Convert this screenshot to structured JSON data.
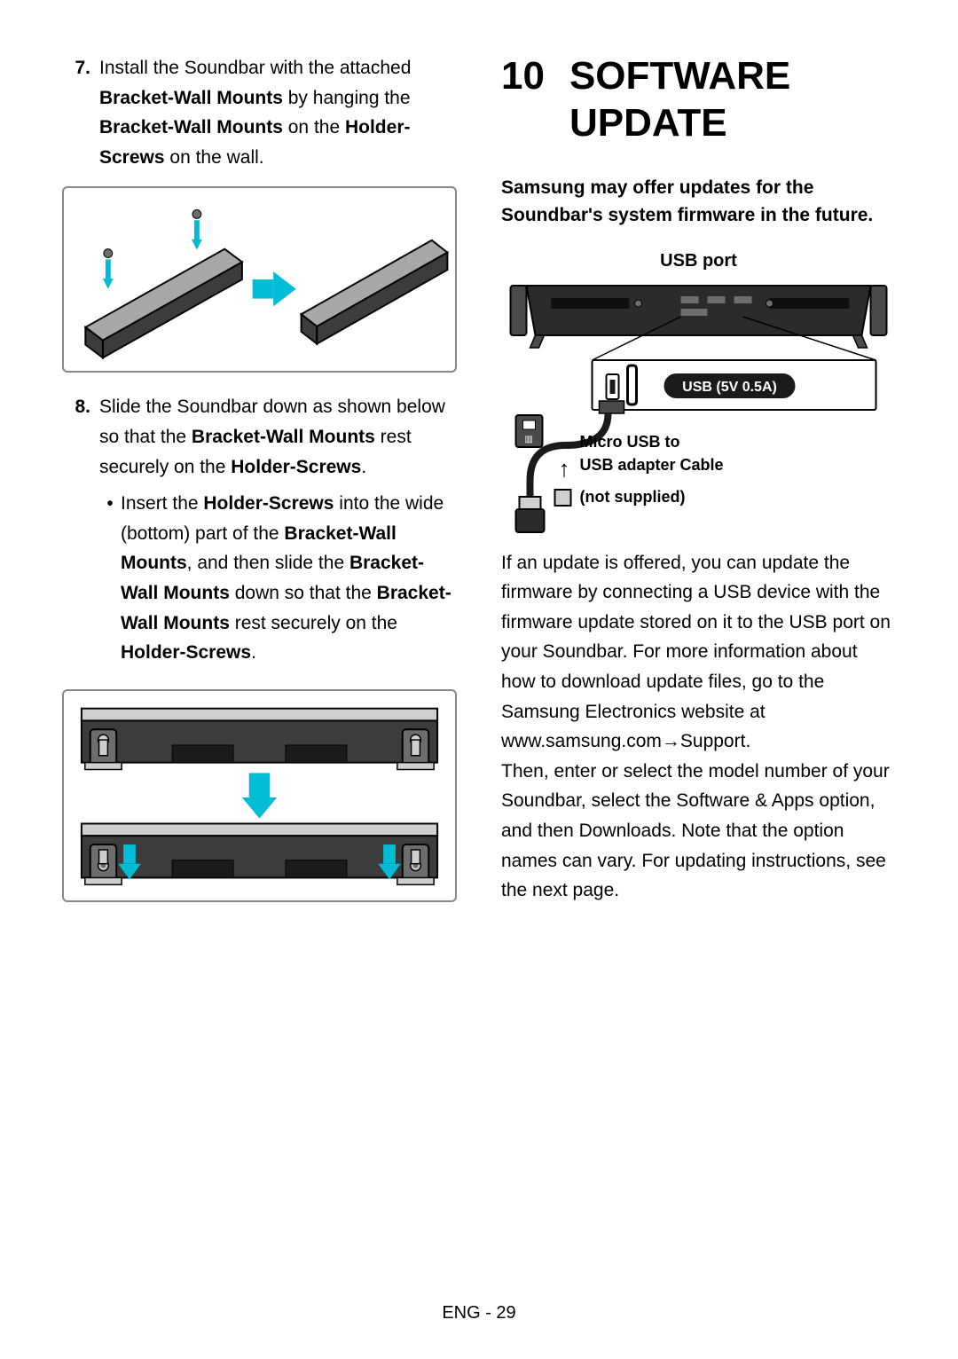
{
  "left": {
    "step7": {
      "num": "7.",
      "text_parts": [
        "Install the Soundbar with the attached ",
        "Bracket-Wall Mounts",
        " by hanging the ",
        "Bracket-Wall Mounts",
        " on the ",
        "Holder-Screws",
        " on the wall."
      ]
    },
    "step8": {
      "num": "8.",
      "text_parts": [
        "Slide the Soundbar down as shown below so that the ",
        "Bracket-Wall Mounts",
        " rest securely on the ",
        "Holder-Screws",
        "."
      ],
      "bullet_parts": [
        "Insert the ",
        "Holder-Screws",
        " into the wide (bottom) part of the ",
        "Bracket-Wall Mounts",
        ", and then slide the ",
        "Bracket-Wall Mounts",
        " down so that the ",
        "Bracket-Wall Mounts",
        " rest securely on the ",
        "Holder-Screws",
        "."
      ]
    },
    "fig1": {
      "border_color": "#8c8c8c",
      "bar_fill": "#3c3c3c",
      "bar_top": "#a8a8a8",
      "arrow_color": "#00bcd4",
      "screw_color": "#6d6d6d"
    },
    "fig2": {
      "border_color": "#8c8c8c",
      "bar_fill": "#3c3c3c",
      "bar_light": "#cfcfcf",
      "mount_fill": "#6d6d6d",
      "arrow_color": "#00bcd4"
    }
  },
  "right": {
    "section_num": "10",
    "section_title": "SOFTWARE UPDATE",
    "intro": "Samsung may offer updates for the Soundbar's system firmware in the future.",
    "usb_port_label": "USB port",
    "usb_pill_text": "USB (5V 0.5A)",
    "cable_label_line1": "Micro USB to",
    "cable_label_line2": "USB adapter Cable",
    "cable_label_line3": "(not supplied)",
    "body": "If an update is offered, you can update the firmware by connecting a USB device with the firmware update stored on it to the USB port on your Soundbar. For more information about how to download update files, go to the Samsung Electronics website at\nwww.samsung.com→Support.\nThen, enter or select the model number of your Soundbar, select the Software & Apps option, and then Downloads. Note that the option names can vary. For updating instructions, see the next page.",
    "fig3": {
      "bar_fill": "#2b2b2b",
      "bar_dark": "#0f0f0f",
      "cable_color": "#1a1a1a",
      "plug_fill": "#4a4a4a",
      "usb_stick_body": "#2b2b2b",
      "usb_stick_tip": "#cfcfcf"
    }
  },
  "footer": "ENG - 29",
  "colors": {
    "text": "#000000",
    "bg": "#ffffff",
    "cyan": "#00bcd4"
  }
}
